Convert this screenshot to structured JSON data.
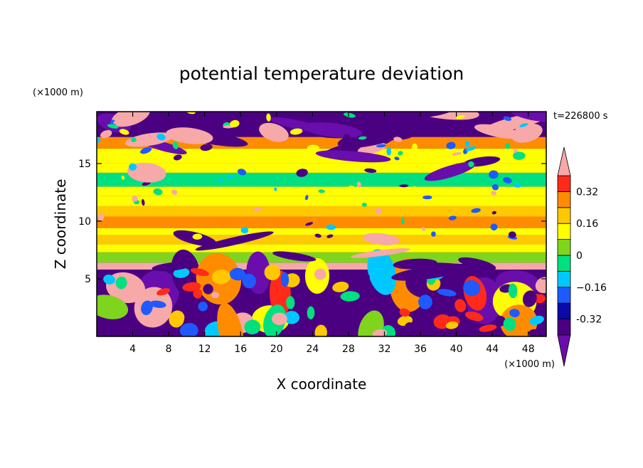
{
  "chart_data": {
    "type": "heatmap",
    "title": "potential temperature deviation",
    "xlabel": "X coordinate",
    "ylabel": "Z coordinate",
    "x_unit": "(×1000 m)",
    "y_unit": "(×1000 m)",
    "time_label": "t=226800 s",
    "xlim": [
      0,
      50
    ],
    "ylim": [
      0,
      19.5
    ],
    "x_ticks": [
      4,
      8,
      12,
      16,
      20,
      24,
      28,
      32,
      36,
      40,
      44,
      48
    ],
    "y_ticks": [
      5,
      10,
      15
    ],
    "colorbar": {
      "levels": [
        -0.4,
        -0.32,
        -0.24,
        -0.16,
        -0.08,
        0,
        0.08,
        0.16,
        0.24,
        0.32,
        0.4
      ],
      "tick_values": [
        -0.32,
        -0.16,
        0,
        0.16,
        0.32
      ],
      "tick_labels": [
        "-0.32",
        "−0.16",
        "0",
        "0.16",
        "0.32"
      ],
      "colors": [
        "#6a0dad",
        "#4b0082",
        "#0a0aa8",
        "#1e5aff",
        "#00c8ff",
        "#00e080",
        "#7fd41e",
        "#ffff00",
        "#ffc800",
        "#ff8c00",
        "#ff2a1a",
        "#f7a8a8"
      ],
      "extend": "both"
    },
    "bands": [
      {
        "z": [
          0,
          5.8
        ],
        "pattern": "turbulent",
        "dominant": "mixed"
      },
      {
        "z": [
          5.8,
          6.4
        ],
        "value": 0.4
      },
      {
        "z": [
          6.4,
          7.3
        ],
        "value": 0.06
      },
      {
        "z": [
          7.3,
          8.0
        ],
        "value": 0.1
      },
      {
        "z": [
          8.0,
          8.8
        ],
        "value": 0.18
      },
      {
        "z": [
          8.8,
          9.4
        ],
        "value": 0.14
      },
      {
        "z": [
          9.4,
          10.4
        ],
        "value": 0.26
      },
      {
        "z": [
          10.4,
          11.3
        ],
        "value": 0.18
      },
      {
        "z": [
          11.3,
          12.2
        ],
        "value": 0.15
      },
      {
        "z": [
          12.2,
          13.0
        ],
        "value": 0.08
      },
      {
        "z": [
          13.0,
          14.2
        ],
        "value": -0.06
      },
      {
        "z": [
          14.2,
          15.0
        ],
        "value": 0.08
      },
      {
        "z": [
          15.0,
          16.3
        ],
        "value": 0.14
      },
      {
        "z": [
          16.3,
          17.3
        ],
        "value": 0.24
      },
      {
        "z": [
          17.3,
          19.5
        ],
        "pattern": "patchy",
        "dominant": "mixed"
      }
    ]
  }
}
